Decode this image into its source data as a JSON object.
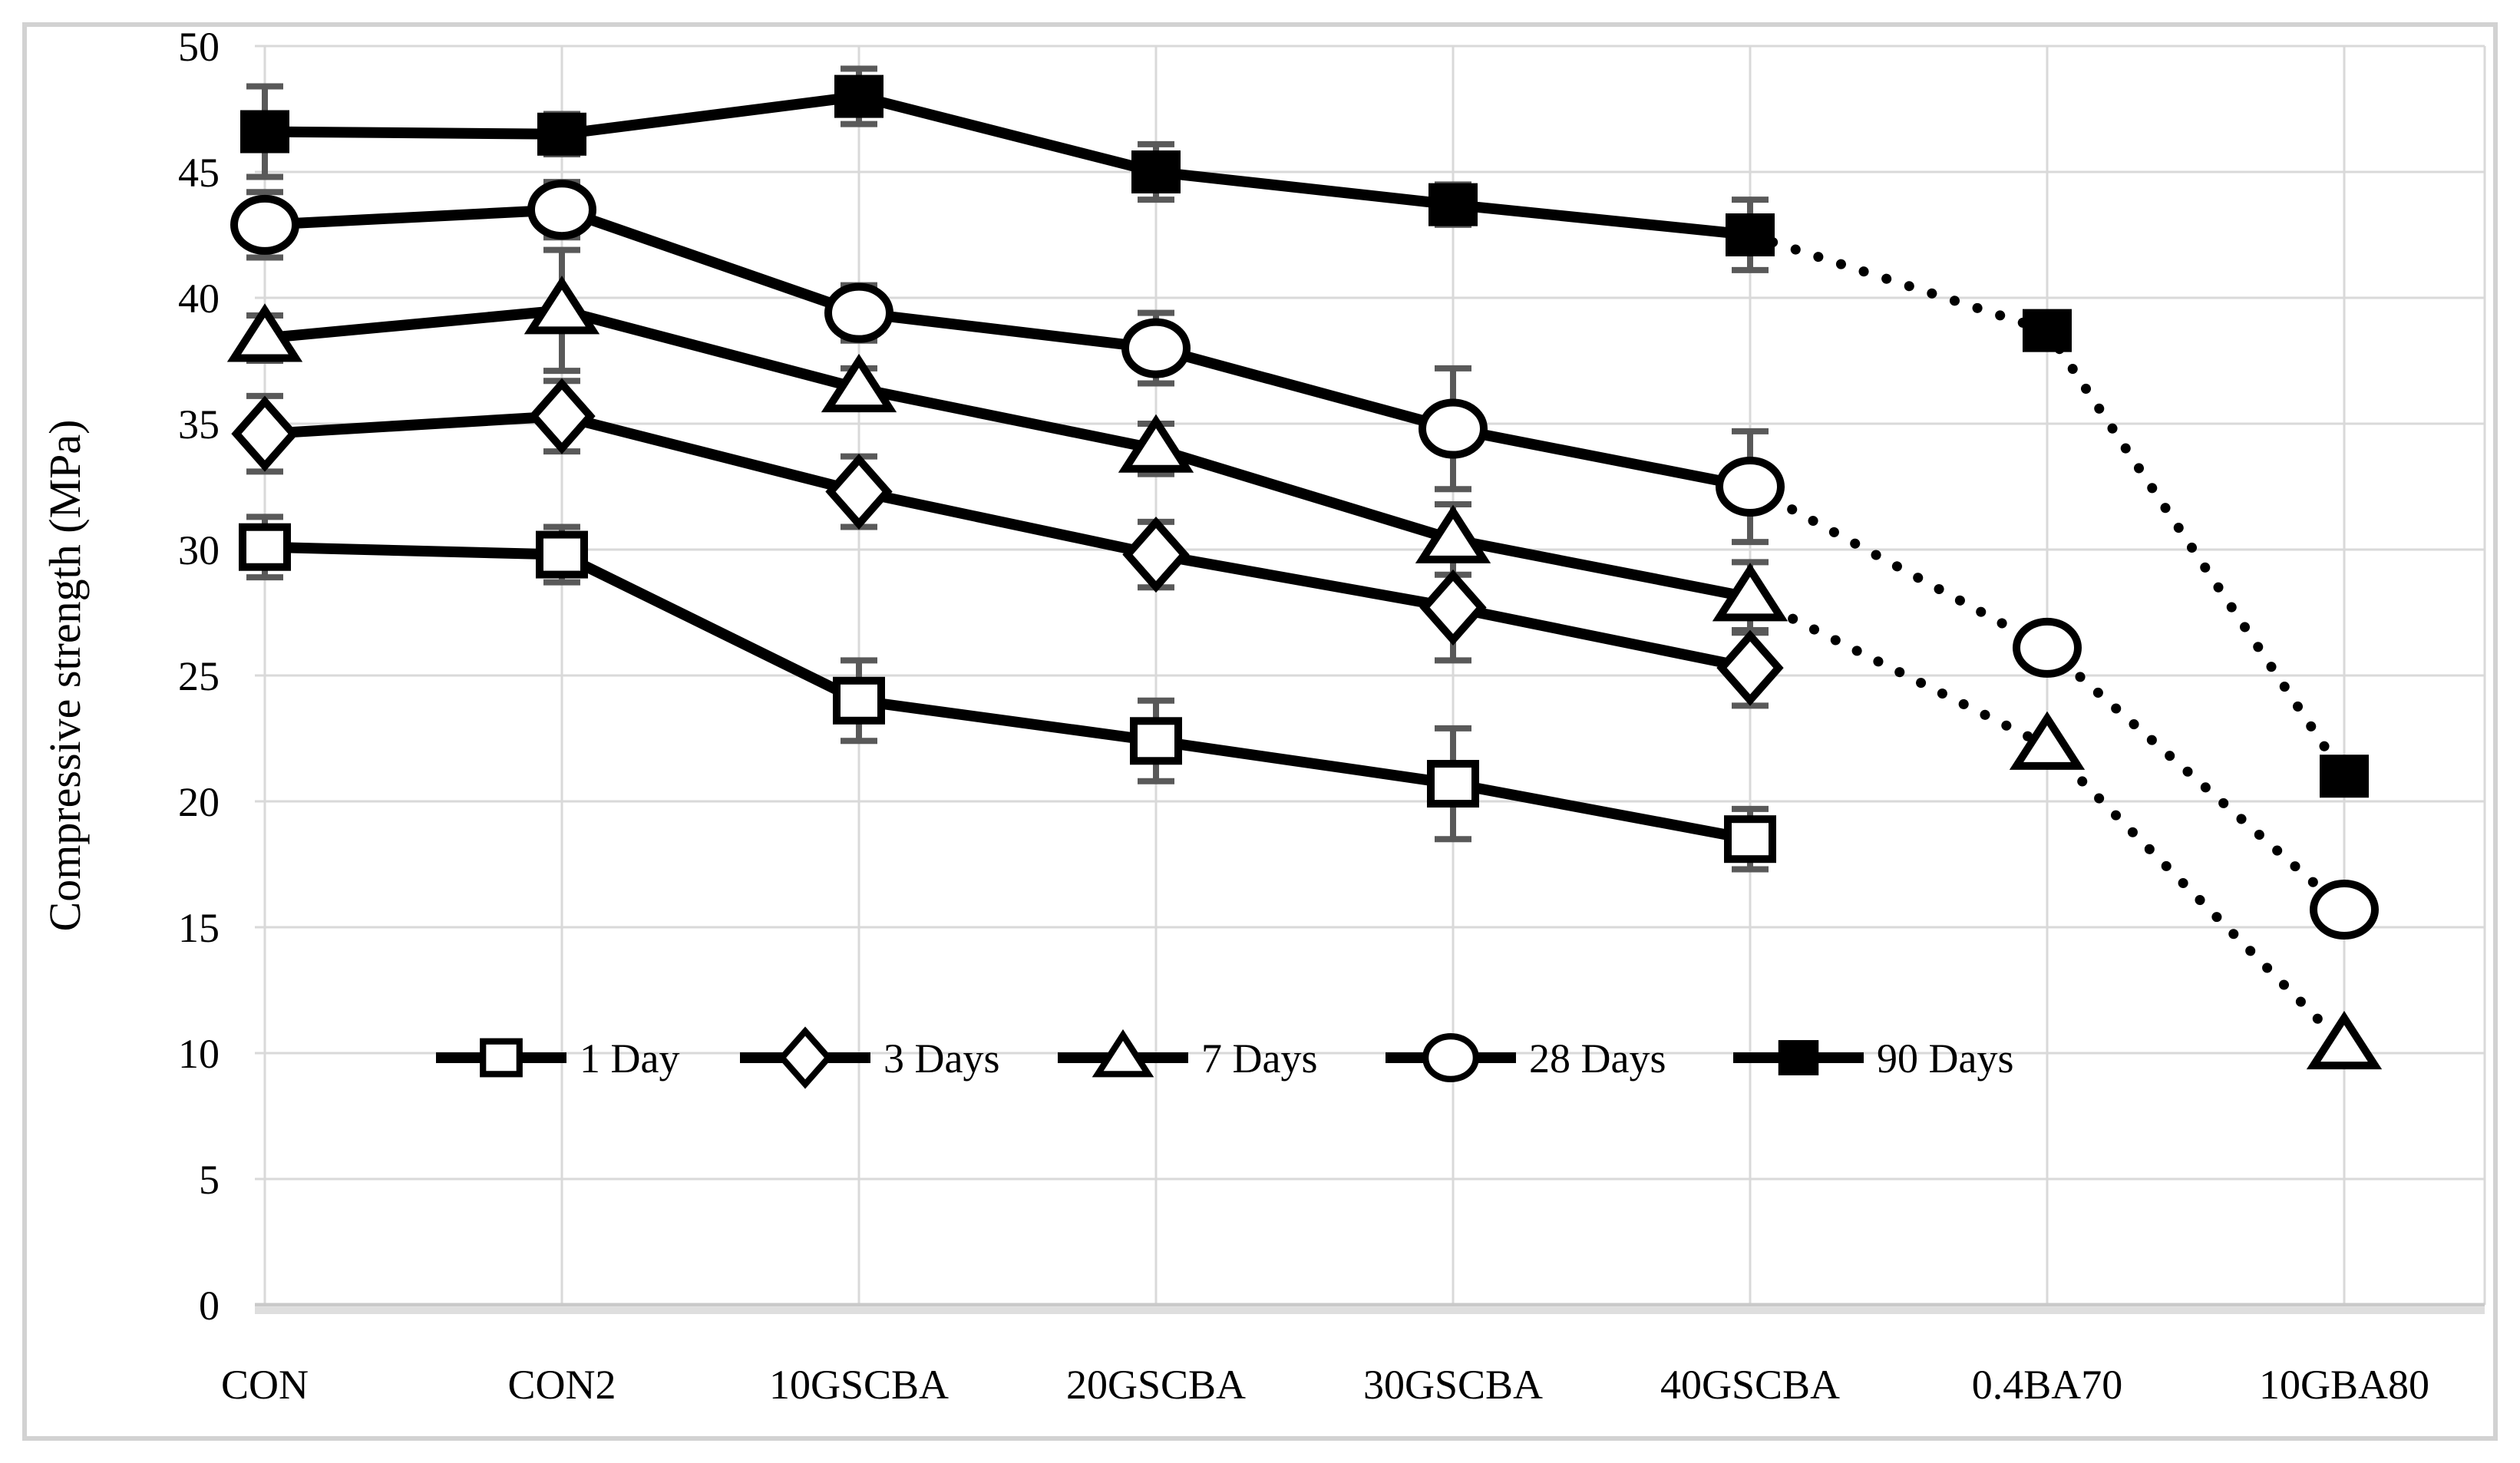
{
  "figure": {
    "background_color": "#ffffff",
    "border_color": "#d2d2d2",
    "gridline_color": "#d9d9d9",
    "axis_line_color": "#c9c9c9",
    "error_bar_color": "#595959",
    "series_color": "#000000"
  },
  "chart_data": {
    "type": "line",
    "title": "",
    "xlabel": "",
    "ylabel": "Compressive strength (MPa)",
    "ylim": [
      0,
      50
    ],
    "ytick_step": 5,
    "ytick_labels": [
      "0",
      "5",
      "10",
      "15",
      "20",
      "25",
      "30",
      "35",
      "40",
      "45",
      "50"
    ],
    "grid": true,
    "legend_position": "inside-bottom-center",
    "categories": [
      "CON",
      "CON2",
      "10GSCBA",
      "20GSCBA",
      "30GSCBA",
      "40GSCBA",
      "0.4BA70",
      "10GBA80"
    ],
    "solid_segment_last_index": 5,
    "dotted_note": "segments beyond 40GSCBA are dotted extrapolations",
    "series": [
      {
        "name": "1 Day",
        "marker": "square-open",
        "values": [
          30.1,
          29.8,
          24.0,
          22.4,
          20.7,
          18.5,
          null,
          null
        ],
        "errors": [
          1.2,
          1.1,
          1.6,
          1.6,
          2.2,
          1.2,
          null,
          null
        ]
      },
      {
        "name": "3 Days",
        "marker": "diamond-open",
        "values": [
          34.6,
          35.3,
          32.3,
          29.8,
          27.7,
          25.3,
          null,
          null
        ],
        "errors": [
          1.5,
          1.4,
          1.4,
          1.3,
          2.1,
          1.5,
          null,
          null
        ]
      },
      {
        "name": "7 Days",
        "marker": "triangle-open",
        "values": [
          38.4,
          39.5,
          36.4,
          34.0,
          30.4,
          28.1,
          22.2,
          10.3
        ],
        "errors": [
          0.9,
          2.4,
          0.8,
          1.0,
          1.4,
          1.4,
          null,
          null
        ]
      },
      {
        "name": "28 Days",
        "marker": "circle-open",
        "values": [
          42.9,
          43.5,
          39.4,
          38.0,
          34.8,
          32.5,
          26.1,
          15.7
        ],
        "errors": [
          1.3,
          1.1,
          1.1,
          1.4,
          2.4,
          2.2,
          null,
          null
        ]
      },
      {
        "name": "90 Days",
        "marker": "square-filled",
        "values": [
          46.6,
          46.5,
          48.0,
          45.0,
          43.7,
          42.5,
          38.7,
          21.0
        ],
        "errors": [
          1.8,
          0.8,
          1.1,
          1.1,
          0.8,
          1.4,
          null,
          null
        ]
      }
    ]
  }
}
